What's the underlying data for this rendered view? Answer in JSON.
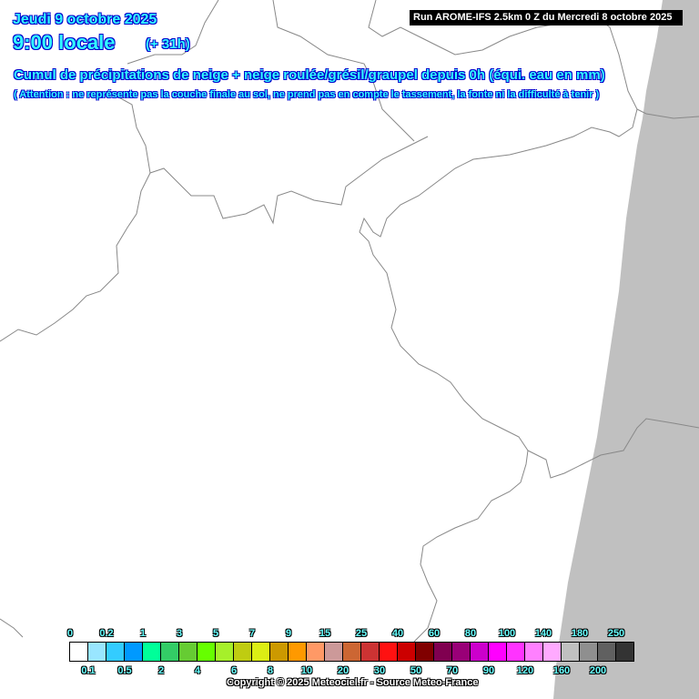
{
  "header": {
    "date": "Jeudi 9 octobre 2025",
    "hour": "9:00 locale",
    "lead": "(+ 31h)",
    "title": "Cumul de précipitations de neige + neige roulée/grésil/graupel depuis 0h (équi. eau en mm)",
    "note": "( Attention : ne représente pas la couche finale au sol, ne prend pas en compte le tassement, la fonte ni la difficulté à tenir )",
    "run": "Run AROME-IFS 2.5km 0 Z du Mercredi 8 octobre 2025"
  },
  "colors": {
    "text": "#33ffff",
    "text_outline": "#0000cc",
    "border_lines": "#888888",
    "out_of_domain": "#c0c0c0"
  },
  "legend": {
    "colors": [
      "#ffffff",
      "#99e6ff",
      "#33ccff",
      "#0099ff",
      "#00ff99",
      "#33cc66",
      "#66cc33",
      "#66ff00",
      "#a6f02a",
      "#bfcc11",
      "#dcee14",
      "#cc9900",
      "#ff9900",
      "#ff9966",
      "#cc9999",
      "#cc6633",
      "#cc3333",
      "#ff1111",
      "#cc0000",
      "#800000",
      "#800050",
      "#990077",
      "#cc00cc",
      "#ff00ff",
      "#ff33ff",
      "#ff80ff",
      "#ffaaff",
      "#c0c0c0",
      "#8f8f8f",
      "#606060",
      "#333333"
    ],
    "top_labels": [
      "0",
      "0.2",
      "1",
      "3",
      "5",
      "7",
      "9",
      "15",
      "25",
      "40",
      "60",
      "80",
      "100",
      "140",
      "180",
      "250"
    ],
    "bottom_labels": [
      "0.1",
      "0.5",
      "2",
      "4",
      "6",
      "8",
      "10",
      "20",
      "30",
      "50",
      "70",
      "90",
      "120",
      "160",
      "200"
    ]
  },
  "footer": {
    "copyright": "Copyright © 2025 Meteociel.fr - Source Meteo-France"
  }
}
